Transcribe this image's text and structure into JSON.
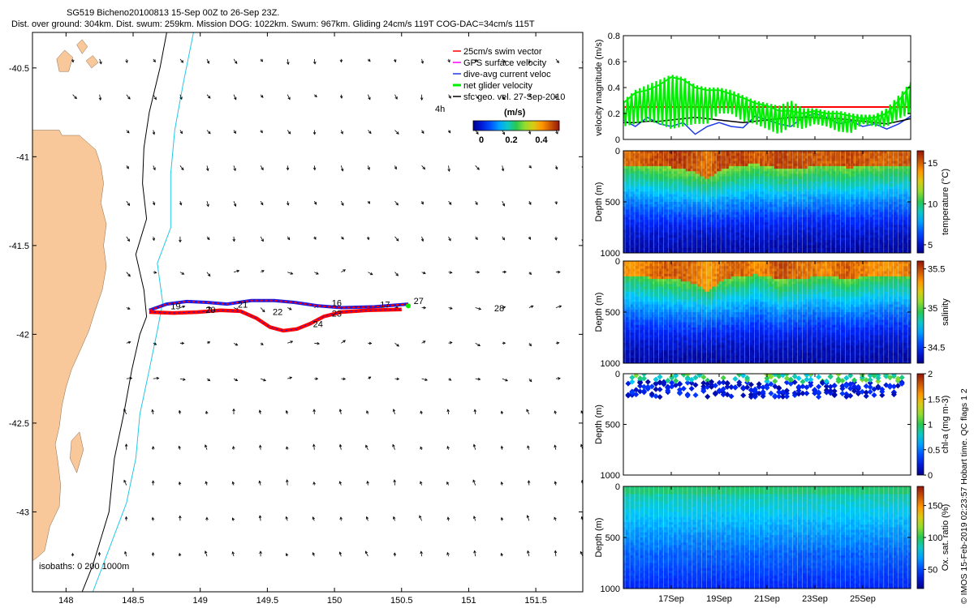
{
  "header": {
    "title_line1": "SG519 Bicheno20100813 15-Sep 00Z to 26-Sep 23Z.",
    "title_line2": "Dist. over ground: 304km. Dist. swum: 259km. Mission DOG: 1022km. Swum: 967km. Gliding 24cm/s 119T COG-DAC=34cm/s 115T"
  },
  "colors": {
    "land": "#f9c89a",
    "isobath_200": "#000000",
    "isobath_1000": "#22c9e6",
    "track_red": "#ff0000",
    "track_blue": "#1a1ae6",
    "net_velocity": "#00ee00",
    "gps_velocity": "#ff00ff",
    "current_line": "#1a3ae6",
    "geo_line": "#000000"
  },
  "chart_data": [
    {
      "type": "scatter",
      "name": "map",
      "xlabel": "",
      "ylabel": "",
      "xlim": [
        147.75,
        151.85
      ],
      "ylim": [
        -43.45,
        -40.3
      ],
      "xticks": [
        "148",
        "148.5",
        "149",
        "149.5",
        "150",
        "150.5",
        "151",
        "151.5"
      ],
      "xtick_values": [
        148,
        148.5,
        149,
        149.5,
        150,
        150.5,
        151,
        151.5
      ],
      "yticks": [
        "-40.5",
        "-41",
        "-41.5",
        "-42",
        "-42.5",
        "-43"
      ],
      "ytick_values": [
        -40.5,
        -41,
        -41.5,
        -42,
        -42.5,
        -43
      ],
      "legend": {
        "placement": "top-right",
        "entries": [
          "25cm/s swim vector",
          "GPS surface velocity",
          "dive-avg current veloc",
          "net glider velocity",
          "sfc geo. vel. 27-Sep-2010"
        ],
        "interval_label": "4h",
        "colorbar_title": "(m/s)",
        "colorbar_ticks": [
          "0",
          "0.2",
          "0.4"
        ]
      },
      "isobath_label": "isobaths: 0   200  1000m",
      "day_labels": [
        {
          "text": "19",
          "lon": 148.78,
          "lat": -41.86
        },
        {
          "text": "20",
          "lon": 149.04,
          "lat": -41.88
        },
        {
          "text": "21",
          "lon": 149.28,
          "lat": -41.85
        },
        {
          "text": "22",
          "lon": 149.54,
          "lat": -41.89
        },
        {
          "text": "24",
          "lon": 149.84,
          "lat": -41.96
        },
        {
          "text": "16",
          "lon": 149.98,
          "lat": -41.84
        },
        {
          "text": "23",
          "lon": 149.98,
          "lat": -41.9
        },
        {
          "text": "17",
          "lon": 150.34,
          "lat": -41.85
        },
        {
          "text": "27",
          "lon": 150.59,
          "lat": -41.83
        },
        {
          "text": "28",
          "lon": 151.19,
          "lat": -41.87
        }
      ],
      "track_north": [
        [
          150.55,
          -41.83
        ],
        [
          150.3,
          -41.845
        ],
        [
          150.05,
          -41.85
        ],
        [
          149.88,
          -41.84
        ],
        [
          149.7,
          -41.82
        ],
        [
          149.55,
          -41.81
        ],
        [
          149.38,
          -41.81
        ],
        [
          149.2,
          -41.83
        ],
        [
          149.05,
          -41.82
        ],
        [
          148.9,
          -41.815
        ],
        [
          148.75,
          -41.83
        ],
        [
          148.62,
          -41.865
        ]
      ],
      "track_south": [
        [
          148.62,
          -41.875
        ],
        [
          148.8,
          -41.88
        ],
        [
          148.98,
          -41.875
        ],
        [
          149.15,
          -41.865
        ],
        [
          149.3,
          -41.87
        ],
        [
          149.42,
          -41.91
        ],
        [
          149.52,
          -41.96
        ],
        [
          149.62,
          -41.98
        ],
        [
          149.72,
          -41.97
        ],
        [
          149.82,
          -41.94
        ],
        [
          149.92,
          -41.9
        ],
        [
          150.05,
          -41.875
        ],
        [
          150.25,
          -41.865
        ],
        [
          150.5,
          -41.86
        ]
      ]
    },
    {
      "type": "line",
      "name": "velocity",
      "ylabel": "velocity magnitude (m/s)",
      "ylim": [
        0,
        0.8
      ],
      "yticks": [
        "0",
        "0.2",
        "0.4",
        "0.6",
        "0.8"
      ],
      "ytick_values": [
        0,
        0.2,
        0.4,
        0.6,
        0.8
      ],
      "x_days": [
        0,
        12
      ],
      "series": [
        {
          "name": "swim speed",
          "color": "#ff0000",
          "x": [
            0,
            12
          ],
          "values": [
            0.25,
            0.25
          ]
        },
        {
          "name": "dive-avg current",
          "color": "#1a3ae6",
          "x": [
            0,
            0.5,
            1,
            1.5,
            2,
            2.5,
            3,
            3.5,
            4,
            4.5,
            5,
            5.5,
            6,
            6.5,
            7,
            7.5,
            8,
            8.5,
            9,
            9.5,
            10,
            10.5,
            11,
            11.5,
            12
          ],
          "values": [
            0.15,
            0.1,
            0.17,
            0.12,
            0.1,
            0.13,
            0.04,
            0.1,
            0.13,
            0.1,
            0.09,
            0.18,
            0.15,
            0.12,
            0.1,
            0.17,
            0.2,
            0.17,
            0.12,
            0.14,
            0.1,
            0.12,
            0.08,
            0.12,
            0.18
          ]
        },
        {
          "name": "surface geostrophic",
          "color": "#000000",
          "x": [
            0,
            0.5,
            1,
            1.5,
            2,
            2.5,
            3,
            3.5,
            4,
            4.5,
            5,
            5.5,
            6,
            6.5,
            7,
            7.5,
            8,
            8.5,
            9,
            9.5,
            10,
            10.5,
            11,
            11.5,
            12
          ],
          "values": [
            0.13,
            0.13,
            0.14,
            0.14,
            0.15,
            0.16,
            0.17,
            0.16,
            0.15,
            0.14,
            0.13,
            0.14,
            0.15,
            0.16,
            0.17,
            0.17,
            0.17,
            0.16,
            0.16,
            0.15,
            0.14,
            0.13,
            0.12,
            0.14,
            0.16
          ]
        },
        {
          "name": "net glider velocity",
          "color": "#00ee00",
          "x": [
            0,
            0.5,
            1,
            1.5,
            2,
            2.5,
            3,
            3.5,
            4,
            4.5,
            5,
            5.5,
            6,
            6.5,
            7,
            7.5,
            8,
            8.5,
            9,
            9.5,
            10,
            10.5,
            11,
            11.5,
            12
          ],
          "values": [
            0.28,
            0.36,
            0.38,
            0.42,
            0.48,
            0.46,
            0.4,
            0.38,
            0.38,
            0.35,
            0.32,
            0.28,
            0.26,
            0.22,
            0.22,
            0.2,
            0.22,
            0.2,
            0.2,
            0.18,
            0.16,
            0.17,
            0.2,
            0.3,
            0.42
          ],
          "upper": [
            0.3,
            0.38,
            0.42,
            0.46,
            0.5,
            0.48,
            0.42,
            0.4,
            0.4,
            0.38,
            0.34,
            0.3,
            0.28,
            0.26,
            0.3,
            0.24,
            0.24,
            0.22,
            0.22,
            0.2,
            0.19,
            0.19,
            0.24,
            0.34,
            0.44
          ],
          "lower": [
            0.1,
            0.12,
            0.14,
            0.12,
            0.08,
            0.1,
            0.12,
            0.12,
            0.2,
            0.2,
            0.14,
            0.12,
            0.08,
            0.04,
            0.1,
            0.08,
            0.12,
            0.1,
            0.06,
            0.05,
            0.12,
            0.1,
            0.1,
            0.16,
            0.2
          ]
        }
      ]
    },
    {
      "type": "heatmap",
      "name": "temperature",
      "ylabel": "Depth (m)",
      "ylim": [
        1000,
        0
      ],
      "yticks": [
        "0",
        "500",
        "1000"
      ],
      "ytick_values": [
        0,
        500,
        1000
      ],
      "colorbar_label": "temperature (°C)",
      "clim": [
        4,
        16.5
      ],
      "colorbar_ticks": [
        "5",
        "10",
        "15"
      ],
      "colorbar_tick_values": [
        5,
        10,
        15
      ],
      "surface": [
        14.8,
        15,
        15.2,
        15.5,
        15.8,
        15.6,
        15.2,
        14.5,
        15.6,
        15.6,
        15.6,
        15.2,
        15.2,
        15.6,
        15.4,
        15.3,
        15.2,
        15.1,
        15.4,
        15.4,
        15.2,
        15.1,
        15,
        15,
        15.2
      ],
      "thermocline_depth": [
        230,
        240,
        245,
        250,
        270,
        300,
        360,
        460,
        330,
        250,
        240,
        210,
        260,
        280,
        270,
        290,
        240,
        240,
        250,
        280,
        240,
        250,
        240,
        230,
        240
      ],
      "deep": 4.5
    },
    {
      "type": "heatmap",
      "name": "salinity",
      "ylabel": "Depth (m)",
      "ylim": [
        1000,
        0
      ],
      "yticks": [
        "0",
        "500",
        "1000"
      ],
      "ytick_values": [
        0,
        500,
        1000
      ],
      "colorbar_label": "salinity",
      "clim": [
        34.3,
        35.6
      ],
      "colorbar_ticks": [
        "34.5",
        "35",
        "35.5"
      ],
      "colorbar_tick_values": [
        34.5,
        35,
        35.5
      ],
      "surface": [
        35.35,
        35.35,
        35.4,
        35.45,
        35.45,
        35.45,
        35.4,
        35.3,
        35.4,
        35.45,
        35.45,
        35.35,
        35.4,
        35.5,
        35.45,
        35.4,
        35.4,
        35.35,
        35.45,
        35.45,
        35.4,
        35.35,
        35.35,
        35.35,
        35.4
      ],
      "thermocline_depth": [
        250,
        260,
        270,
        280,
        290,
        320,
        380,
        500,
        350,
        270,
        260,
        220,
        260,
        290,
        280,
        300,
        250,
        260,
        270,
        300,
        250,
        270,
        250,
        240,
        250
      ],
      "deep": 34.35
    },
    {
      "type": "scatter",
      "name": "chlorophyll",
      "ylabel": "Depth (m)",
      "ylim": [
        1000,
        0
      ],
      "yticks": [
        "0",
        "500",
        "1000"
      ],
      "ytick_values": [
        0,
        500,
        1000
      ],
      "colorbar_label": "chl-a (mg m-3)",
      "clim": [
        0,
        2
      ],
      "colorbar_ticks": [
        "0",
        "0.5",
        "1",
        "1.5",
        "2"
      ],
      "colorbar_tick_values": [
        0,
        0.5,
        1,
        1.5,
        2
      ],
      "max_depth": 230
    },
    {
      "type": "heatmap",
      "name": "oxygen",
      "ylabel": "Depth (m)",
      "ylim": [
        1000,
        0
      ],
      "yticks": [
        "0",
        "500",
        "1000"
      ],
      "ytick_values": [
        0,
        500,
        1000
      ],
      "colorbar_label": "Ox. sat. ratio (%)",
      "clim": [
        20,
        180
      ],
      "colorbar_ticks": [
        "50",
        "100",
        "150"
      ],
      "colorbar_tick_values": [
        50,
        100,
        150
      ],
      "xticks": [
        "17Sep",
        "19Sep",
        "21Sep",
        "23Sep",
        "25Sep"
      ],
      "xtick_days": [
        2,
        4,
        6,
        8,
        10
      ]
    }
  ],
  "footer": {
    "side_note": "© IMOS 15-Feb-2019 02:23:57 Hobart time. QC flags 1  2"
  }
}
